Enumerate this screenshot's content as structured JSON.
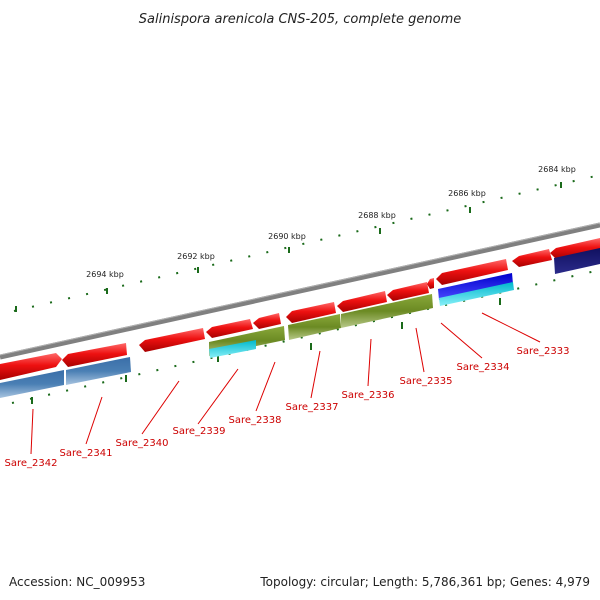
{
  "title": "Salinispora arenicola CNS-205, complete genome",
  "accession": "Accession: NC_009953",
  "topology": "Topology: circular; Length: 5,786,361 bp; Genes: 4,979",
  "colors": {
    "cds": "#ee1111",
    "rna": "#6b8a23",
    "feature_a": "#4a7fb4",
    "feature_b": "#00ccdd",
    "feature_c": "#1a1ad8",
    "feature_d": "#0a1a6a",
    "backbone": "#808080",
    "tick": "#1a6a1a",
    "label": "#cc0000"
  },
  "ruler": {
    "ticks": [
      {
        "label": "2684 kbp"
      },
      {
        "label": "2686 kbp"
      },
      {
        "label": "2688 kbp"
      },
      {
        "label": "2690 kbp"
      },
      {
        "label": "2692 kbp"
      },
      {
        "label": "2694 kbp"
      }
    ]
  },
  "genes": [
    {
      "name": "Sare_2333"
    },
    {
      "name": "Sare_2334"
    },
    {
      "name": "Sare_2335"
    },
    {
      "name": "Sare_2336"
    },
    {
      "name": "Sare_2337"
    },
    {
      "name": "Sare_2338"
    },
    {
      "name": "Sare_2339"
    },
    {
      "name": "Sare_2340"
    },
    {
      "name": "Sare_2341"
    },
    {
      "name": "Sare_2342"
    }
  ]
}
